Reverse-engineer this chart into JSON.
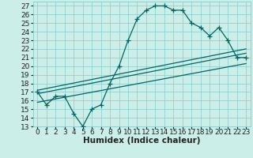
{
  "xlabel": "Humidex (Indice chaleur)",
  "ylim": [
    13,
    27.5
  ],
  "xlim": [
    -0.5,
    23.5
  ],
  "yticks": [
    13,
    14,
    15,
    16,
    17,
    18,
    19,
    20,
    21,
    22,
    23,
    24,
    25,
    26,
    27
  ],
  "xtick_vals": [
    0,
    1,
    2,
    3,
    4,
    5,
    6,
    7,
    8,
    9,
    10,
    11,
    12,
    13,
    14,
    15,
    16,
    17,
    18,
    19,
    20,
    21,
    22,
    23
  ],
  "xtick_labels": [
    "0",
    "1",
    "2",
    "3",
    "4",
    "5",
    "6",
    "7",
    "8",
    "9",
    "10",
    "11",
    "12",
    "13",
    "14",
    "15",
    "16",
    "17",
    "18",
    "19",
    "20",
    "21",
    "22",
    "23"
  ],
  "main_x": [
    0,
    1,
    2,
    3,
    4,
    5,
    6,
    7,
    8,
    9,
    10,
    11,
    12,
    13,
    14,
    15,
    16,
    17,
    18,
    19,
    20,
    21,
    22,
    23
  ],
  "main_y": [
    17.0,
    15.5,
    16.5,
    16.5,
    14.5,
    13.0,
    15.0,
    15.5,
    18.0,
    20.0,
    23.0,
    25.5,
    26.5,
    27.0,
    27.0,
    26.5,
    26.5,
    25.0,
    24.5,
    23.5,
    24.5,
    23.0,
    21.0,
    21.0
  ],
  "line1_x": [
    0,
    23
  ],
  "line1_y": [
    16.8,
    21.5
  ],
  "line2_x": [
    0,
    23
  ],
  "line2_y": [
    15.8,
    20.3
  ],
  "line3_x": [
    0,
    23
  ],
  "line3_y": [
    17.2,
    22.0
  ],
  "bg_color": "#cceee8",
  "grid_color": "#88cccc",
  "line_color": "#006666",
  "marker": "+",
  "markersize": 4,
  "linewidth": 0.9,
  "tick_fontsize": 6.5,
  "xlabel_fontsize": 7.5
}
